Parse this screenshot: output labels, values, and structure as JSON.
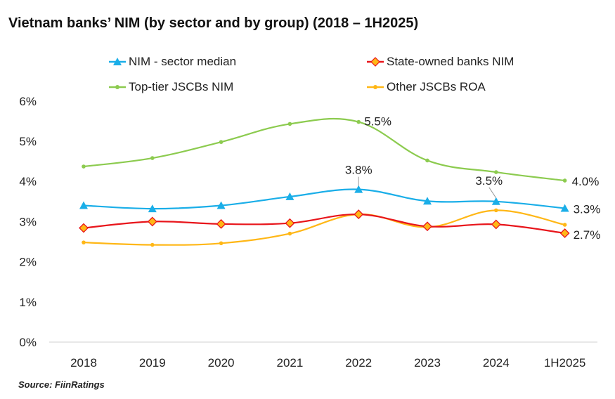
{
  "chart_data": {
    "type": "line",
    "title": "Vietnam banks’ NIM (by sector and by group) (2018 – 1H2025)",
    "categories": [
      "2018",
      "2019",
      "2020",
      "2021",
      "2022",
      "2023",
      "2024",
      "1H2025"
    ],
    "yticks": [
      "0%",
      "1%",
      "2%",
      "3%",
      "4%",
      "5%",
      "6%"
    ],
    "ylim": [
      0,
      6
    ],
    "grid": false,
    "legend_position": "top",
    "series": [
      {
        "name": "NIM - sector median",
        "color": "#1AAEE8",
        "marker": "triangle",
        "values": [
          3.4,
          3.32,
          3.4,
          3.62,
          3.8,
          3.51,
          3.5,
          3.33
        ],
        "labels": [
          {
            "index": 4,
            "text": "3.8%"
          },
          {
            "index": 6,
            "text": "3.5%"
          },
          {
            "index": 7,
            "text": "3.3%"
          }
        ]
      },
      {
        "name": "State-owned banks NIM",
        "color": "#E8151B",
        "marker": "diamond",
        "values": [
          2.84,
          3.0,
          2.94,
          2.96,
          3.18,
          2.88,
          2.93,
          2.71
        ],
        "labels": [
          {
            "index": 7,
            "text": "2.7%"
          }
        ]
      },
      {
        "name": "Top-tier JSCBs NIM",
        "color": "#8CCB4F",
        "marker": "circle",
        "values": [
          4.37,
          4.58,
          4.98,
          5.43,
          5.48,
          4.52,
          4.23,
          4.02
        ],
        "labels": [
          {
            "index": 4,
            "text": "5.5%"
          },
          {
            "index": 7,
            "text": "4.0%"
          }
        ]
      },
      {
        "name": "Other JSCBs ROA",
        "color": "#FFB716",
        "marker": "circle",
        "values": [
          2.48,
          2.42,
          2.46,
          2.7,
          3.18,
          2.86,
          3.28,
          2.92
        ],
        "labels": []
      }
    ]
  },
  "source": "Source: FiinRatings"
}
